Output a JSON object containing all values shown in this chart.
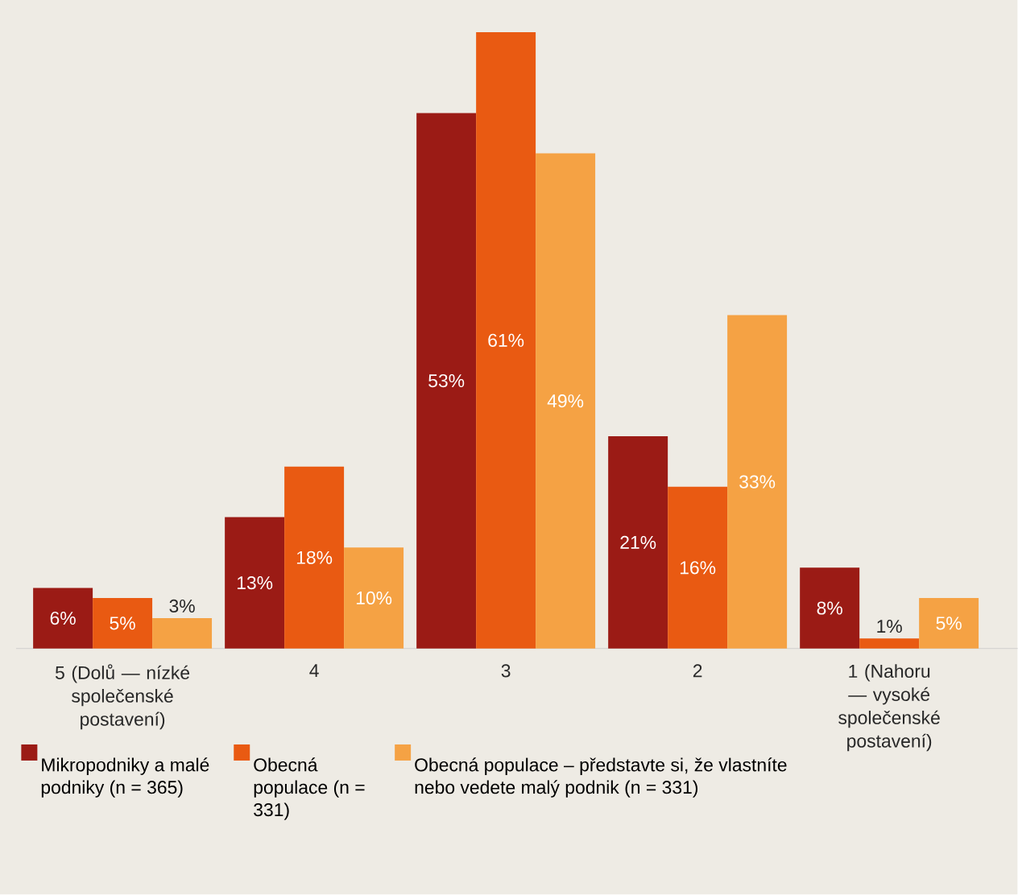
{
  "chart_data": {
    "type": "bar",
    "categories": [
      "5 (Dolů — nízké společenské postavení)",
      "4",
      "3",
      "2",
      "1 (Nahoru — vysoké společenské postavení)"
    ],
    "series": [
      {
        "name": "Mikropodniky a malé podniky (n = 365)",
        "color": "#9b1b15",
        "values": [
          6,
          13,
          53,
          21,
          8
        ],
        "value_labels": [
          "6%",
          "13%",
          "53%",
          "21%",
          "8%"
        ]
      },
      {
        "name": "Obecná populace (n = 331)",
        "color": "#e95a12",
        "values": [
          5,
          18,
          61,
          16,
          1
        ],
        "value_labels": [
          "5%",
          "18%",
          "61%",
          "16%",
          "1%"
        ]
      },
      {
        "name": "Obecná populace – představte si, že vlastníte nebo vedete malý podnik (n = 331)",
        "color": "#f5a244",
        "values": [
          3,
          10,
          49,
          33,
          5
        ],
        "value_labels": [
          "3%",
          "10%",
          "49%",
          "33%",
          "5%"
        ]
      }
    ],
    "legend": "bottom"
  }
}
